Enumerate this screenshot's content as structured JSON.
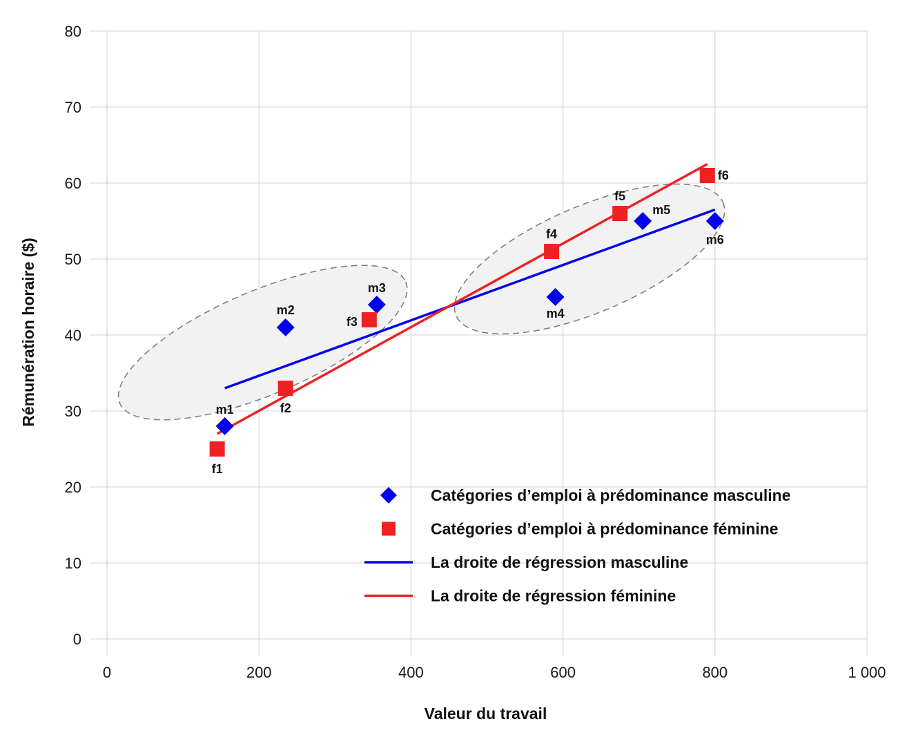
{
  "chart_data": {
    "type": "scatter",
    "title": "",
    "xlabel": "Valeur du travail",
    "ylabel": "Rémunération horaire ($)",
    "xlim": [
      0,
      1000
    ],
    "ylim": [
      0,
      80
    ],
    "x_ticks": [
      0,
      200,
      400,
      600,
      800,
      1000
    ],
    "x_tick_labels": [
      "0",
      "200",
      "400",
      "600",
      "800",
      "1 000"
    ],
    "y_ticks": [
      0,
      10,
      20,
      30,
      40,
      50,
      60,
      70,
      80
    ],
    "y_tick_labels": [
      "0",
      "10",
      "20",
      "30",
      "40",
      "50",
      "60",
      "70",
      "80"
    ],
    "grid": true,
    "legend_position": "bottom-right",
    "series": [
      {
        "name": "Catégories d’emploi à prédominance masculine",
        "marker": "diamond",
        "color": "#0000ee",
        "points": [
          {
            "label": "m1",
            "x": 155,
            "y": 28
          },
          {
            "label": "m2",
            "x": 235,
            "y": 41
          },
          {
            "label": "m3",
            "x": 355,
            "y": 44
          },
          {
            "label": "m4",
            "x": 590,
            "y": 45
          },
          {
            "label": "m5",
            "x": 705,
            "y": 55
          },
          {
            "label": "m6",
            "x": 800,
            "y": 55
          }
        ]
      },
      {
        "name": "Catégories d’emploi à prédominance féminine",
        "marker": "square",
        "color": "#ee2222",
        "points": [
          {
            "label": "f1",
            "x": 145,
            "y": 25
          },
          {
            "label": "f2",
            "x": 235,
            "y": 33
          },
          {
            "label": "f3",
            "x": 345,
            "y": 42
          },
          {
            "label": "f4",
            "x": 585,
            "y": 51
          },
          {
            "label": "f5",
            "x": 675,
            "y": 56
          },
          {
            "label": "f6",
            "x": 790,
            "y": 61
          }
        ]
      }
    ],
    "regression_lines": [
      {
        "name": "La droite de régression masculine",
        "color": "#0000ee",
        "x": [
          155,
          800
        ],
        "y": [
          33,
          56.5
        ]
      },
      {
        "name": "La droite de régression féminine",
        "color": "#ee2222",
        "x": [
          145,
          790
        ],
        "y": [
          27,
          62.5
        ]
      }
    ],
    "clusters": [
      {
        "center": [
          205,
          39
        ],
        "rx": 225,
        "ry": 75,
        "angle_deg": -23
      },
      {
        "center": [
          635,
          50
        ],
        "rx": 210,
        "ry": 77,
        "angle_deg": -23
      }
    ]
  }
}
